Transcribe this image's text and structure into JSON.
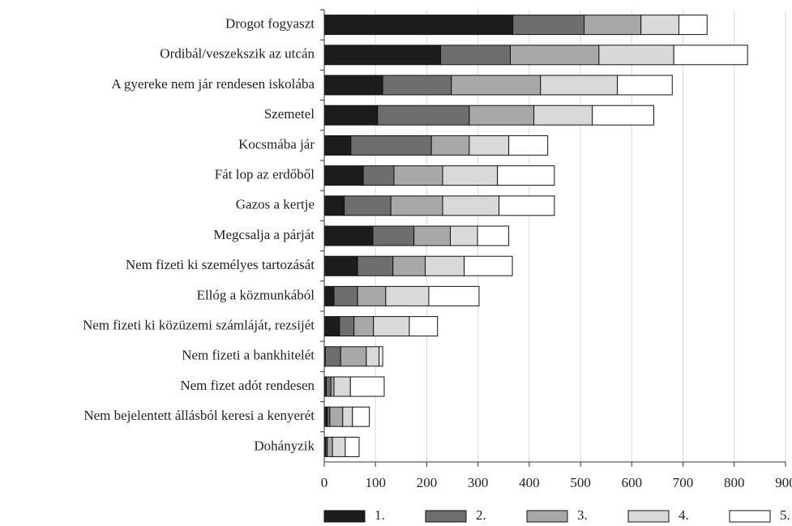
{
  "chart_data": {
    "type": "stacked_bar_horizontal",
    "categories": [
      "Drogot fogyaszt",
      "Ordibál/veszekszik az utcán",
      "A gyereke nem jár rendesen iskolába",
      "Szemetel",
      "Kocsmába jár",
      "Fát lop az erdőből",
      "Gazos a kertje",
      "Megcsalja a párját",
      "Nem fizeti ki személyes tartozását",
      "Ellóg a közmunkából",
      "Nem fizeti ki közüzemi számláját, rezsijét",
      "Nem fizeti a bankhitelét",
      "Nem fizet adót rendesen",
      "Nem bejelentett állásból keresi a kenyerét",
      "Dohányzik"
    ],
    "series": [
      {
        "name": "1.",
        "color": "#1c1c1c",
        "values": [
          368,
          227,
          114,
          104,
          52,
          76,
          39,
          95,
          65,
          19,
          30,
          2,
          4,
          6,
          3
        ]
      },
      {
        "name": "2.",
        "color": "#6e6e6e",
        "values": [
          139,
          136,
          134,
          179,
          157,
          60,
          91,
          80,
          69,
          46,
          28,
          30,
          9,
          5,
          3
        ]
      },
      {
        "name": "3.",
        "color": "#a8a8a8",
        "values": [
          111,
          173,
          174,
          126,
          74,
          95,
          101,
          71,
          63,
          55,
          38,
          50,
          6,
          25,
          10
        ]
      },
      {
        "name": "4.",
        "color": "#d9d9d9",
        "values": [
          74,
          146,
          150,
          114,
          77,
          107,
          110,
          53,
          76,
          84,
          70,
          25,
          32,
          19,
          25
        ]
      },
      {
        "name": "5.",
        "color": "#ffffff",
        "values": [
          55,
          144,
          107,
          120,
          76,
          111,
          108,
          61,
          94,
          98,
          55,
          7,
          66,
          33,
          27
        ]
      }
    ],
    "xlim": [
      0,
      900
    ],
    "xticks": [
      0,
      100,
      200,
      300,
      400,
      500,
      600,
      700,
      800,
      900
    ],
    "grid": true,
    "legend": "bottom"
  }
}
